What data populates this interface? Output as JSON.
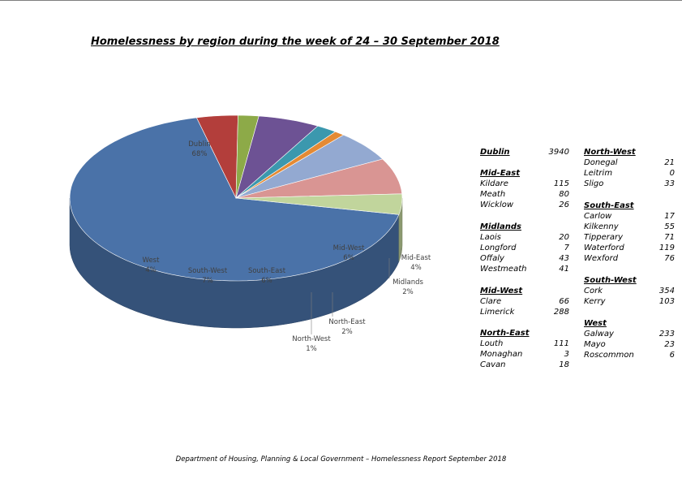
{
  "chart_data": {
    "type": "pie",
    "title": "Homelessness by region during the week of 24 – 30 September 2018",
    "slices": [
      {
        "label": "Dublin",
        "percent": "68%",
        "value": 68,
        "color": "#4a72a8"
      },
      {
        "label": "Mid-East",
        "percent": "4%",
        "value": 4,
        "color": "#b33e3b"
      },
      {
        "label": "Midlands",
        "percent": "2%",
        "value": 2,
        "color": "#8daa48"
      },
      {
        "label": "Mid-West",
        "percent": "6%",
        "value": 6,
        "color": "#6d5294"
      },
      {
        "label": "North-East",
        "percent": "2%",
        "value": 2,
        "color": "#3b98ae"
      },
      {
        "label": "North-West",
        "percent": "1%",
        "value": 1,
        "color": "#e48a34"
      },
      {
        "label": "South-East",
        "percent": "6%",
        "value": 6,
        "color": "#93a9d1"
      },
      {
        "label": "South-West",
        "percent": "7%",
        "value": 7,
        "color": "#d99593"
      },
      {
        "label": "West",
        "percent": "4%",
        "value": 4,
        "color": "#c1d59c"
      }
    ]
  },
  "table": {
    "left": [
      {
        "region": "Dublin",
        "total": "3940",
        "counties": []
      },
      {
        "region": "Mid-East",
        "counties": [
          {
            "name": "Kildare",
            "value": "115"
          },
          {
            "name": "Meath",
            "value": "80"
          },
          {
            "name": "Wicklow",
            "value": "26"
          }
        ]
      },
      {
        "region": "Midlands",
        "counties": [
          {
            "name": "Laois",
            "value": "20"
          },
          {
            "name": "Longford",
            "value": "7"
          },
          {
            "name": "Offaly",
            "value": "43"
          },
          {
            "name": "Westmeath",
            "value": "41"
          }
        ]
      },
      {
        "region": "Mid-West",
        "counties": [
          {
            "name": "Clare",
            "value": "66"
          },
          {
            "name": "Limerick",
            "value": "288"
          }
        ]
      },
      {
        "region": "North-East",
        "counties": [
          {
            "name": "Louth",
            "value": "111"
          },
          {
            "name": "Monaghan",
            "value": "3"
          },
          {
            "name": "Cavan",
            "value": "18"
          }
        ]
      }
    ],
    "right": [
      {
        "region": "North-West",
        "counties": [
          {
            "name": "Donegal",
            "value": "21"
          },
          {
            "name": "Leitrim",
            "value": "0"
          },
          {
            "name": "Sligo",
            "value": "33"
          }
        ]
      },
      {
        "region": "South-East",
        "counties": [
          {
            "name": "Carlow",
            "value": "17"
          },
          {
            "name": "Kilkenny",
            "value": "55"
          },
          {
            "name": "Tipperary",
            "value": "71"
          },
          {
            "name": "Waterford",
            "value": "119"
          },
          {
            "name": "Wexford",
            "value": "76"
          }
        ]
      },
      {
        "region": "South-West",
        "counties": [
          {
            "name": "Cork",
            "value": "354"
          },
          {
            "name": "Kerry",
            "value": "103"
          }
        ]
      },
      {
        "region": "West",
        "counties": [
          {
            "name": "Galway",
            "value": "233"
          },
          {
            "name": "Mayo",
            "value": "23"
          },
          {
            "name": "Roscommon",
            "value": "6"
          }
        ]
      }
    ]
  },
  "footer": "Department of Housing, Planning & Local Government – Homelessness Report September 2018"
}
